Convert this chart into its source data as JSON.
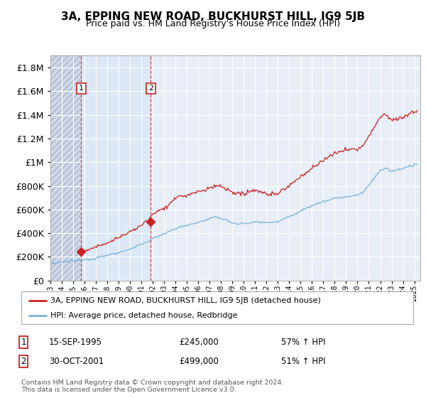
{
  "title": "3A, EPPING NEW ROAD, BUCKHURST HILL, IG9 5JB",
  "subtitle": "Price paid vs. HM Land Registry's House Price Index (HPI)",
  "legend_line1": "3A, EPPING NEW ROAD, BUCKHURST HILL, IG9 5JB (detached house)",
  "legend_line2": "HPI: Average price, detached house, Redbridge",
  "annotation1_date": "15-SEP-1995",
  "annotation1_price": "£245,000",
  "annotation1_hpi": "57% ↑ HPI",
  "annotation2_date": "30-OCT-2001",
  "annotation2_price": "£499,000",
  "annotation2_hpi": "51% ↑ HPI",
  "footnote": "Contains HM Land Registry data © Crown copyright and database right 2024.\nThis data is licensed under the Open Government Licence v3.0.",
  "sale1_year": 1995.71,
  "sale1_price": 245000,
  "sale2_year": 2001.83,
  "sale2_price": 499000,
  "hpi_color": "#7ab4d8",
  "price_color": "#cc2222",
  "hatch_bg_color": "#d0d8e8",
  "light_blue_bg": "#dce8f5",
  "plot_bg_color": "#e8eef8",
  "ylim": [
    0,
    1900000
  ],
  "xlim_start": 1993.0,
  "xlim_end": 2025.5,
  "figwidth": 6.0,
  "figheight": 5.6,
  "dpi": 100
}
